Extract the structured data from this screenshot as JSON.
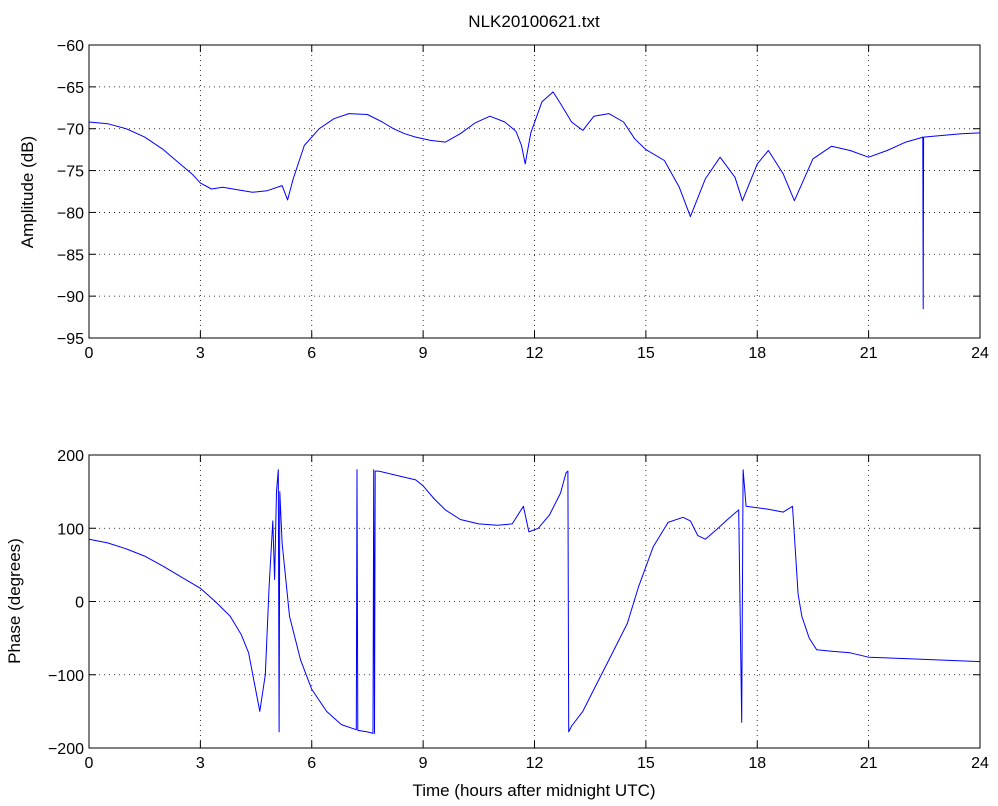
{
  "title": "NLK20100621.txt",
  "chart_data": [
    {
      "type": "line",
      "ylabel": "Amplitude (dB)",
      "xlabel": "",
      "xlim": [
        0,
        24
      ],
      "ylim": [
        -95,
        -60
      ],
      "xticks": [
        0,
        3,
        6,
        9,
        12,
        15,
        18,
        21,
        24
      ],
      "yticks": [
        -95,
        -90,
        -85,
        -80,
        -75,
        -70,
        -65,
        -60
      ],
      "grid": true,
      "color": "#0000ff",
      "series": [
        {
          "points": [
            [
              0,
              -69.2
            ],
            [
              0.5,
              -69.4
            ],
            [
              1.0,
              -70.0
            ],
            [
              1.5,
              -71.0
            ],
            [
              2.0,
              -72.5
            ],
            [
              2.4,
              -74.0
            ],
            [
              2.8,
              -75.5
            ],
            [
              3.0,
              -76.5
            ],
            [
              3.3,
              -77.2
            ],
            [
              3.6,
              -77.0
            ],
            [
              4.0,
              -77.3
            ],
            [
              4.4,
              -77.6
            ],
            [
              4.8,
              -77.4
            ],
            [
              5.2,
              -76.8
            ],
            [
              5.35,
              -78.5
            ],
            [
              5.5,
              -76.0
            ],
            [
              5.8,
              -72.0
            ],
            [
              6.2,
              -70.0
            ],
            [
              6.6,
              -68.8
            ],
            [
              7.0,
              -68.2
            ],
            [
              7.5,
              -68.3
            ],
            [
              7.9,
              -69.2
            ],
            [
              8.2,
              -70.0
            ],
            [
              8.5,
              -70.6
            ],
            [
              8.8,
              -71.0
            ],
            [
              9.2,
              -71.4
            ],
            [
              9.6,
              -71.6
            ],
            [
              10.0,
              -70.6
            ],
            [
              10.4,
              -69.3
            ],
            [
              10.8,
              -68.5
            ],
            [
              11.2,
              -69.2
            ],
            [
              11.5,
              -70.3
            ],
            [
              11.65,
              -72.0
            ],
            [
              11.75,
              -74.2
            ],
            [
              11.9,
              -70.5
            ],
            [
              12.2,
              -66.8
            ],
            [
              12.5,
              -65.6
            ],
            [
              12.7,
              -67.0
            ],
            [
              13.0,
              -69.2
            ],
            [
              13.3,
              -70.2
            ],
            [
              13.6,
              -68.5
            ],
            [
              14.0,
              -68.2
            ],
            [
              14.4,
              -69.2
            ],
            [
              14.7,
              -71.2
            ],
            [
              15.0,
              -72.5
            ],
            [
              15.5,
              -73.8
            ],
            [
              15.9,
              -77.0
            ],
            [
              16.2,
              -80.5
            ],
            [
              16.6,
              -76.0
            ],
            [
              17.0,
              -73.4
            ],
            [
              17.4,
              -75.8
            ],
            [
              17.6,
              -78.6
            ],
            [
              18.0,
              -74.2
            ],
            [
              18.3,
              -72.6
            ],
            [
              18.7,
              -75.4
            ],
            [
              19.0,
              -78.6
            ],
            [
              19.5,
              -73.6
            ],
            [
              20.0,
              -72.1
            ],
            [
              20.5,
              -72.6
            ],
            [
              21.0,
              -73.4
            ],
            [
              21.5,
              -72.6
            ],
            [
              22.0,
              -71.6
            ],
            [
              22.4,
              -71.1
            ],
            [
              22.46,
              -71.0
            ],
            [
              22.47,
              -91.5
            ],
            [
              22.48,
              -71.0
            ],
            [
              23.0,
              -70.8
            ],
            [
              23.5,
              -70.6
            ],
            [
              24.0,
              -70.5
            ]
          ]
        }
      ]
    },
    {
      "type": "line",
      "ylabel": "Phase (degrees)",
      "xlabel": "Time (hours after midnight UTC)",
      "xlim": [
        0,
        24
      ],
      "ylim": [
        -200,
        200
      ],
      "xticks": [
        0,
        3,
        6,
        9,
        12,
        15,
        18,
        21,
        24
      ],
      "yticks": [
        -200,
        -100,
        0,
        100,
        200
      ],
      "grid": true,
      "color": "#0000ff",
      "series": [
        {
          "points": [
            [
              0,
              85
            ],
            [
              0.5,
              80
            ],
            [
              1.0,
              72
            ],
            [
              1.5,
              62
            ],
            [
              2.0,
              48
            ],
            [
              2.5,
              33
            ],
            [
              3.0,
              18
            ],
            [
              3.4,
              0
            ],
            [
              3.8,
              -20
            ],
            [
              4.1,
              -45
            ],
            [
              4.3,
              -70
            ],
            [
              4.45,
              -110
            ],
            [
              4.6,
              -150
            ],
            [
              4.75,
              -100
            ],
            [
              4.85,
              20
            ],
            [
              4.95,
              110
            ],
            [
              5.0,
              30
            ],
            [
              5.05,
              150
            ],
            [
              5.1,
              180
            ],
            [
              5.12,
              -178
            ],
            [
              5.14,
              150
            ],
            [
              5.2,
              80
            ],
            [
              5.4,
              -20
            ],
            [
              5.7,
              -80
            ],
            [
              6.0,
              -120
            ],
            [
              6.4,
              -150
            ],
            [
              6.8,
              -168
            ],
            [
              7.2,
              -175
            ],
            [
              7.22,
              180
            ],
            [
              7.24,
              -176
            ],
            [
              7.5,
              -178
            ],
            [
              7.65,
              -180
            ],
            [
              7.67,
              180
            ],
            [
              7.69,
              -180
            ],
            [
              7.71,
              178
            ],
            [
              7.8,
              178
            ],
            [
              8.3,
              172
            ],
            [
              8.8,
              166
            ],
            [
              9.0,
              158
            ],
            [
              9.3,
              140
            ],
            [
              9.6,
              125
            ],
            [
              10.0,
              112
            ],
            [
              10.5,
              106
            ],
            [
              11.0,
              104
            ],
            [
              11.4,
              106
            ],
            [
              11.7,
              130
            ],
            [
              11.85,
              95
            ],
            [
              12.1,
              100
            ],
            [
              12.4,
              118
            ],
            [
              12.7,
              148
            ],
            [
              12.85,
              176
            ],
            [
              12.9,
              178
            ],
            [
              12.92,
              -178
            ],
            [
              13.0,
              -170
            ],
            [
              13.3,
              -150
            ],
            [
              13.6,
              -120
            ],
            [
              14.0,
              -80
            ],
            [
              14.5,
              -30
            ],
            [
              14.8,
              20
            ],
            [
              15.2,
              75
            ],
            [
              15.6,
              108
            ],
            [
              16.0,
              115
            ],
            [
              16.2,
              110
            ],
            [
              16.4,
              90
            ],
            [
              16.6,
              85
            ],
            [
              16.9,
              98
            ],
            [
              17.2,
              112
            ],
            [
              17.5,
              125
            ],
            [
              17.58,
              -165
            ],
            [
              17.62,
              180
            ],
            [
              17.7,
              130
            ],
            [
              18.0,
              128
            ],
            [
              18.3,
              126
            ],
            [
              18.7,
              122
            ],
            [
              18.95,
              130
            ],
            [
              19.0,
              90
            ],
            [
              19.1,
              10
            ],
            [
              19.2,
              -20
            ],
            [
              19.4,
              -50
            ],
            [
              19.6,
              -66
            ],
            [
              20.0,
              -68
            ],
            [
              20.5,
              -70
            ],
            [
              21.0,
              -76
            ],
            [
              22.0,
              -78
            ],
            [
              23.0,
              -80
            ],
            [
              24.0,
              -82
            ]
          ]
        }
      ]
    }
  ]
}
